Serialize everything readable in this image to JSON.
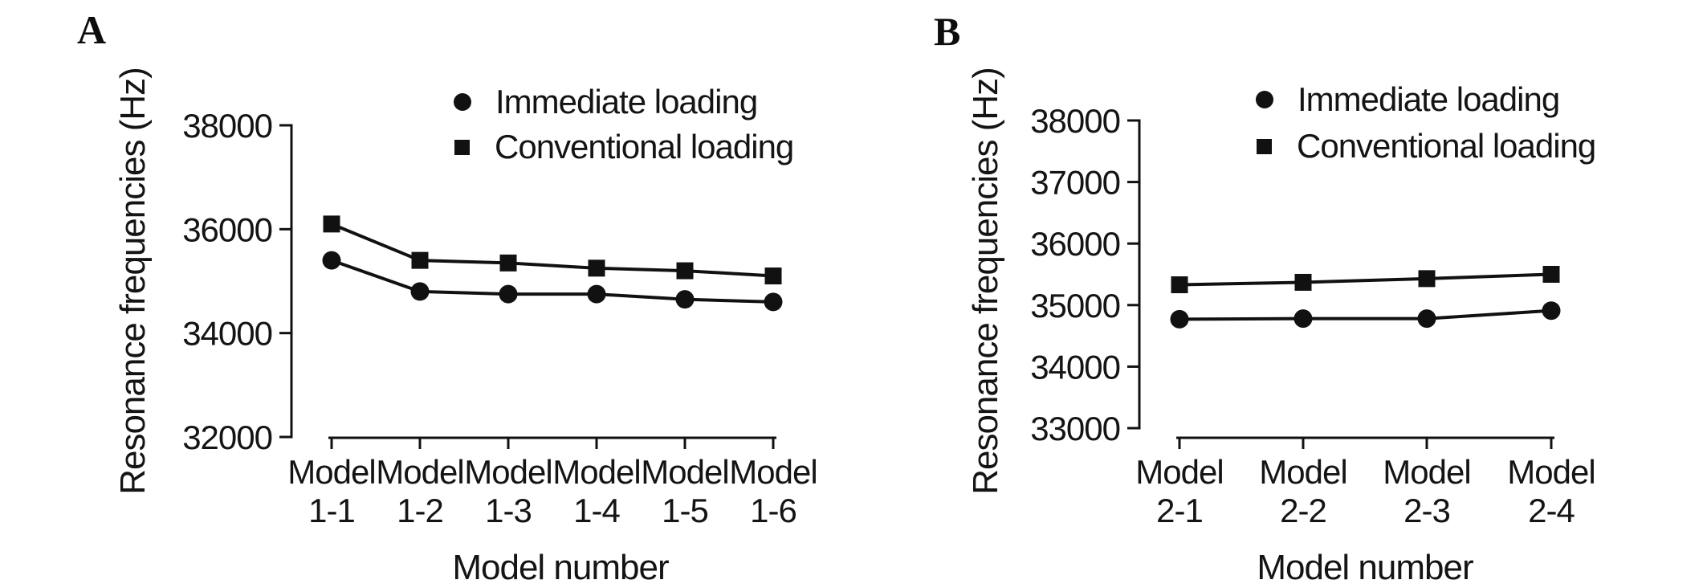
{
  "figure": {
    "panels": [
      {
        "letter": "A",
        "legend": [
          {
            "marker": "circle",
            "label": "Immediate loading"
          },
          {
            "marker": "square",
            "label": "Conventional loading"
          }
        ]
      },
      {
        "letter": "B",
        "legend": [
          {
            "marker": "circle",
            "label": "Immediate loading"
          },
          {
            "marker": "square",
            "label": "Conventional loading"
          }
        ]
      }
    ]
  },
  "chart_data": [
    {
      "type": "line",
      "panel": "A",
      "categories": [
        "Model 1-1",
        "Model 1-2",
        "Model 1-3",
        "Model 1-4",
        "Model 1-5",
        "Model 1-6"
      ],
      "series": [
        {
          "name": "Immediate loading",
          "marker": "circle",
          "values": [
            35400,
            34800,
            34750,
            34750,
            34650,
            34600
          ]
        },
        {
          "name": "Conventional loading",
          "marker": "square",
          "values": [
            36100,
            35400,
            35350,
            35250,
            35200,
            35100
          ]
        }
      ],
      "xlabel": "Model number",
      "ylabel": "Resonance frequencies (Hz)",
      "ylim": [
        32000,
        38000
      ],
      "yticks": [
        38000,
        36000,
        34000,
        32000
      ],
      "grid": false,
      "legend_position": "top-right-inside"
    },
    {
      "type": "line",
      "panel": "B",
      "categories": [
        "Model 2-1",
        "Model 2-2",
        "Model 2-3",
        "Model 2-4"
      ],
      "series": [
        {
          "name": "Immediate loading",
          "marker": "circle",
          "values": [
            34770,
            34780,
            34780,
            34910
          ]
        },
        {
          "name": "Conventional loading",
          "marker": "square",
          "values": [
            35330,
            35370,
            35430,
            35500
          ]
        }
      ],
      "xlabel": "Model number",
      "ylabel": "Resonance frequencies (Hz)",
      "ylim": [
        33000,
        38000
      ],
      "yticks": [
        38000,
        37000,
        36000,
        35000,
        34000,
        33000
      ],
      "grid": false,
      "legend_position": "top-right-inside"
    }
  ],
  "colors": {
    "foreground": "#111111",
    "background": "#ffffff"
  }
}
